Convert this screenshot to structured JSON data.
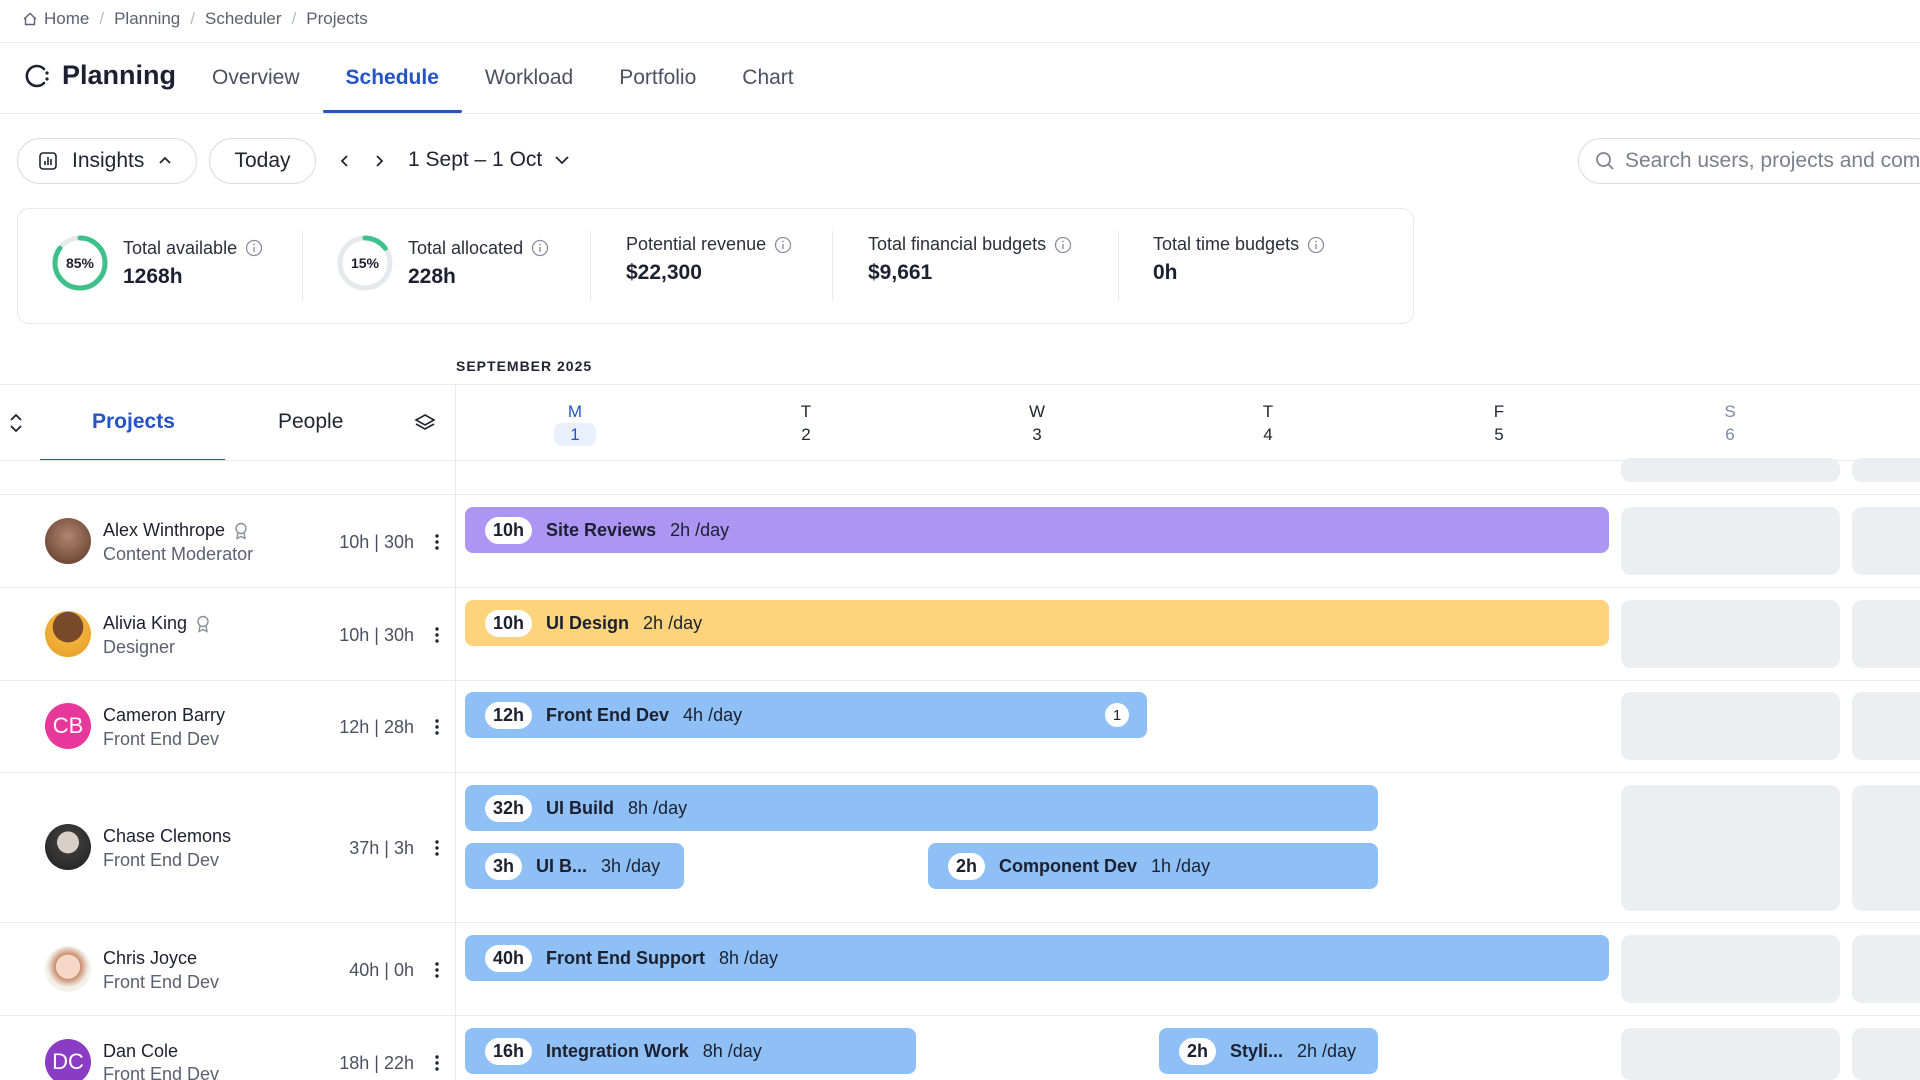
{
  "breadcrumb": [
    "Home",
    "Planning",
    "Scheduler",
    "Projects"
  ],
  "header": {
    "title": "Planning",
    "tabs": [
      "Overview",
      "Schedule",
      "Workload",
      "Portfolio",
      "Chart"
    ],
    "active_tab": "Schedule"
  },
  "toolbar": {
    "insights_label": "Insights",
    "today_label": "Today",
    "date_range": "1 Sept – 1 Oct",
    "search_placeholder": "Search users, projects and com"
  },
  "stats": [
    {
      "label": "Total available",
      "value": "1268h",
      "ring": "85%",
      "fraction": 0.85
    },
    {
      "label": "Total allocated",
      "value": "228h",
      "ring": "15%",
      "fraction": 0.15
    },
    {
      "label": "Potential revenue",
      "value": "$22,300"
    },
    {
      "label": "Total financial budgets",
      "value": "$9,661"
    },
    {
      "label": "Total time budgets",
      "value": "0h"
    }
  ],
  "schedule": {
    "month": "SEPTEMBER 2025",
    "left_tabs": [
      "Projects",
      "People"
    ],
    "days": [
      {
        "dow": "M",
        "num": "1"
      },
      {
        "dow": "T",
        "num": "2"
      },
      {
        "dow": "W",
        "num": "3"
      },
      {
        "dow": "T",
        "num": "4"
      },
      {
        "dow": "F",
        "num": "5"
      },
      {
        "dow": "S",
        "num": "6"
      }
    ]
  },
  "people": [
    {
      "name": "Alex Winthrope",
      "role": "Content Moderator",
      "hours": "10h | 30h",
      "badge": true
    },
    {
      "name": "Alivia King",
      "role": "Designer",
      "hours": "10h | 30h",
      "badge": true
    },
    {
      "name": "Cameron Barry",
      "role": "Front End Dev",
      "hours": "12h | 28h",
      "initials": "CB"
    },
    {
      "name": "Chase Clemons",
      "role": "Front End Dev",
      "hours": "37h | 3h"
    },
    {
      "name": "Chris Joyce",
      "role": "Front End Dev",
      "hours": "40h | 0h"
    },
    {
      "name": "Dan Cole",
      "role": "Front End Dev",
      "hours": "18h | 22h",
      "initials": "DC"
    }
  ],
  "bars": [
    {
      "hours": "10h",
      "title": "Site Reviews",
      "per_day": "2h /day"
    },
    {
      "hours": "10h",
      "title": "UI Design",
      "per_day": "2h /day"
    },
    {
      "hours": "12h",
      "title": "Front End Dev",
      "per_day": "4h /day",
      "count": "1"
    },
    {
      "hours": "32h",
      "title": "UI Build",
      "per_day": "8h /day"
    },
    {
      "hours": "3h",
      "title": "UI B...",
      "per_day": "3h /day"
    },
    {
      "hours": "2h",
      "title": "Component Dev",
      "per_day": "1h /day"
    },
    {
      "hours": "40h",
      "title": "Front End Support",
      "per_day": "8h /day"
    },
    {
      "hours": "16h",
      "title": "Integration Work",
      "per_day": "8h /day"
    },
    {
      "hours": "2h",
      "title": "Styli...",
      "per_day": "2h /day"
    }
  ],
  "colors": {
    "accent": "#2553c8",
    "purple": "#ad95f4",
    "yellow": "#fdd47c",
    "blue": "#8fc0f5",
    "ring": "#3ec08b"
  }
}
